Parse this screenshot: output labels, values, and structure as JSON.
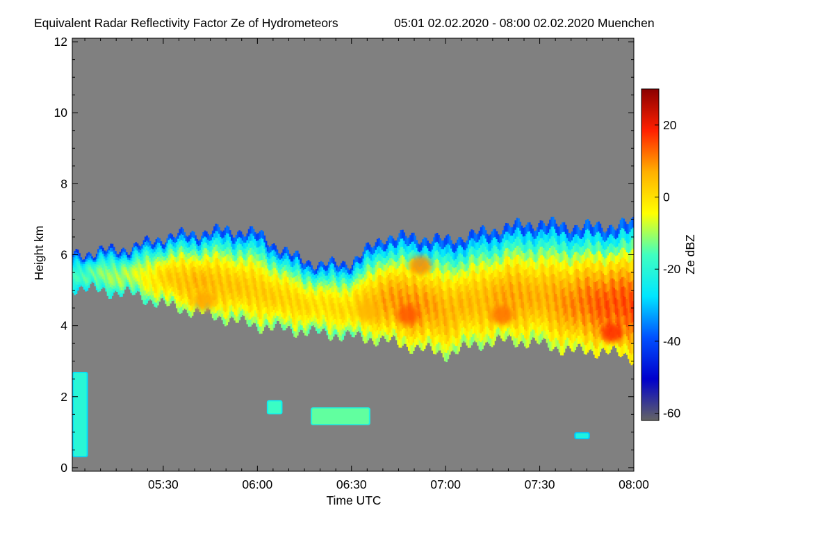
{
  "chart_data": {
    "type": "heatmap",
    "title": "Equivalent Radar Reflectivity Factor Ze of Hydrometeors",
    "period": "05:01 02.02.2020 - 08:00 02.02.2020 Muenchen",
    "xlabel": "Time UTC",
    "ylabel": "Height km",
    "xlim_minutes": [
      301,
      480
    ],
    "x_ticks": [
      {
        "minute": 330,
        "label": "05:30"
      },
      {
        "minute": 360,
        "label": "06:00"
      },
      {
        "minute": 390,
        "label": "06:30"
      },
      {
        "minute": 420,
        "label": "07:00"
      },
      {
        "minute": 450,
        "label": "07:30"
      },
      {
        "minute": 480,
        "label": "08:00"
      }
    ],
    "ylim": [
      -0.1,
      12.1
    ],
    "y_ticks": [
      {
        "value": 0,
        "label": "0"
      },
      {
        "value": 2,
        "label": "2"
      },
      {
        "value": 4,
        "label": "4"
      },
      {
        "value": 6,
        "label": "6"
      },
      {
        "value": 8,
        "label": "8"
      },
      {
        "value": 10,
        "label": "10"
      },
      {
        "value": 12,
        "label": "12"
      }
    ],
    "background_color": "#808080",
    "colorbar": {
      "label": "Ze dBZ",
      "range": [
        -62,
        30
      ],
      "ticks": [
        {
          "value": 20,
          "label": "20"
        },
        {
          "value": 0,
          "label": "0"
        },
        {
          "value": -20,
          "label": "-20"
        },
        {
          "value": -40,
          "label": "-40"
        },
        {
          "value": -60,
          "label": "-60"
        }
      ],
      "colormap": [
        "#646464",
        "#0000cc",
        "#0050ff",
        "#00e6ff",
        "#40ffc0",
        "#ffff00",
        "#ffb000",
        "#ff2000",
        "#8b0000"
      ]
    },
    "main_cloud_layer": {
      "minutes": [
        301,
        310,
        320,
        330,
        340,
        350,
        360,
        370,
        380,
        390,
        400,
        410,
        420,
        430,
        440,
        450,
        460,
        470,
        480
      ],
      "base_km": [
        5.1,
        5.0,
        4.9,
        4.6,
        4.4,
        4.2,
        4.0,
        3.9,
        3.8,
        3.7,
        3.6,
        3.4,
        3.2,
        3.5,
        3.6,
        3.5,
        3.3,
        3.3,
        3.1
      ],
      "top_km": [
        6.0,
        6.1,
        6.2,
        6.5,
        6.6,
        6.7,
        6.6,
        6.0,
        5.7,
        5.8,
        6.5,
        6.5,
        6.4,
        6.6,
        6.8,
        6.9,
        6.8,
        6.8,
        6.9
      ],
      "peak_dbz": [
        -18,
        -12,
        -8,
        2,
        6,
        4,
        3,
        2,
        0,
        1,
        8,
        10,
        6,
        5,
        8,
        6,
        10,
        14,
        15
      ]
    },
    "hot_spots": [
      {
        "minute": 343,
        "height_km": 4.7,
        "dbz": 8
      },
      {
        "minute": 395,
        "height_km": 4.4,
        "dbz": 6
      },
      {
        "minute": 408,
        "height_km": 4.3,
        "dbz": 14
      },
      {
        "minute": 412,
        "height_km": 5.7,
        "dbz": 10
      },
      {
        "minute": 438,
        "height_km": 4.3,
        "dbz": 12
      },
      {
        "minute": 473,
        "height_km": 3.8,
        "dbz": 18
      }
    ],
    "low_echo_patches": [
      {
        "start": 301,
        "end": 306,
        "base_km": 0.3,
        "top_km": 2.7,
        "dbz": -28
      },
      {
        "start": 363,
        "end": 368,
        "base_km": 1.5,
        "top_km": 1.9,
        "dbz": -25
      },
      {
        "start": 377,
        "end": 396,
        "base_km": 1.2,
        "top_km": 1.7,
        "dbz": -22
      },
      {
        "start": 461,
        "end": 466,
        "base_km": 0.8,
        "top_km": 1.0,
        "dbz": -30
      }
    ]
  }
}
